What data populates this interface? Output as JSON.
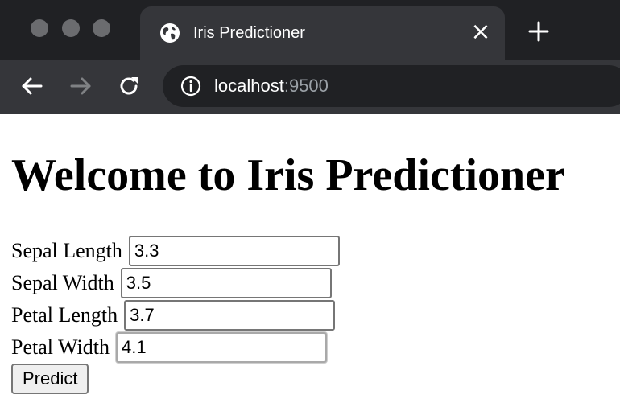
{
  "browser": {
    "tab": {
      "title": "Iris Predictioner",
      "icon": "globe-icon",
      "close_glyph": "×"
    },
    "address": {
      "host": "localhost",
      "port": ":9500",
      "icon": "info-icon"
    },
    "colors": {
      "chrome_dark": "#202124",
      "chrome_light": "#35363a",
      "traffic_light": "#6b6c6f",
      "url_muted": "#9aa0a6"
    }
  },
  "page": {
    "heading": "Welcome to Iris Predictioner",
    "fields": [
      {
        "label": "Sepal Length",
        "value": "3.3"
      },
      {
        "label": "Sepal Width",
        "value": "3.5"
      },
      {
        "label": "Petal Length",
        "value": "3.7"
      },
      {
        "label": "Petal Width",
        "value": "4.1"
      }
    ],
    "submit_label": "Predict"
  }
}
